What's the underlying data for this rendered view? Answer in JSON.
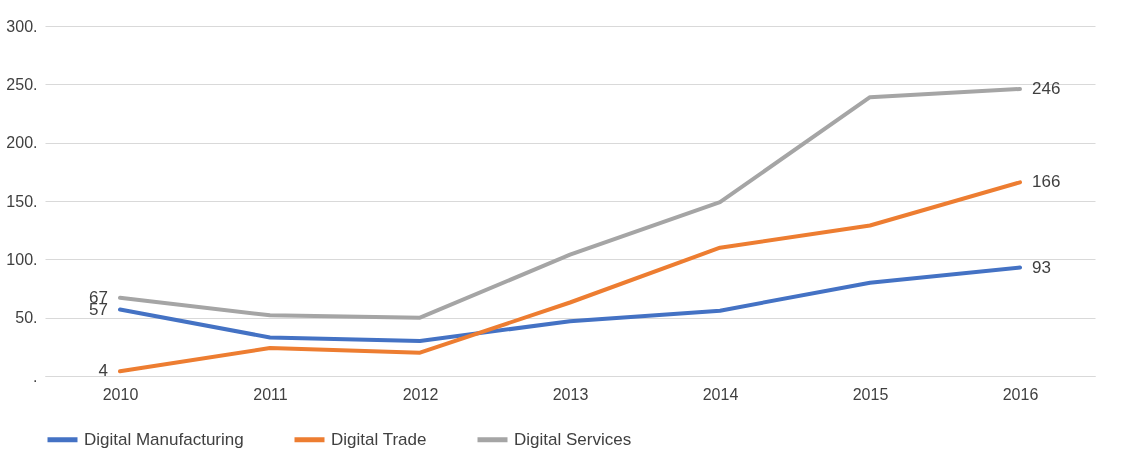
{
  "chart_data": {
    "type": "line",
    "categories": [
      "2010",
      "2011",
      "2012",
      "2013",
      "2014",
      "2015",
      "2016"
    ],
    "series": [
      {
        "name": "Digital Manufacturing",
        "color": "#4472c4",
        "values": [
          57,
          33,
          30,
          47,
          56,
          80,
          93
        ],
        "value_labels": [
          "57",
          null,
          null,
          null,
          null,
          null,
          "93"
        ]
      },
      {
        "name": "Digital Trade",
        "color": "#ed7d31",
        "values": [
          4,
          24,
          20,
          63,
          110,
          129,
          166
        ],
        "value_labels": [
          "4",
          null,
          null,
          null,
          null,
          null,
          "166"
        ]
      },
      {
        "name": "Digital Services",
        "color": "#a5a5a5",
        "values": [
          67,
          52,
          50,
          104,
          149,
          239,
          246
        ],
        "value_labels": [
          "67",
          null,
          null,
          null,
          null,
          null,
          "246"
        ]
      }
    ],
    "ylim": [
      0,
      300
    ],
    "yticks": [
      {
        "value": 0,
        "label": "."
      },
      {
        "value": 50,
        "label": "50."
      },
      {
        "value": 100,
        "label": "100."
      },
      {
        "value": 150,
        "label": "150."
      },
      {
        "value": 200,
        "label": "200."
      },
      {
        "value": 250,
        "label": "250."
      },
      {
        "value": 300,
        "label": "300."
      }
    ],
    "grid": "y",
    "legend": "bottom",
    "marker": "none",
    "line_style": "solid"
  }
}
